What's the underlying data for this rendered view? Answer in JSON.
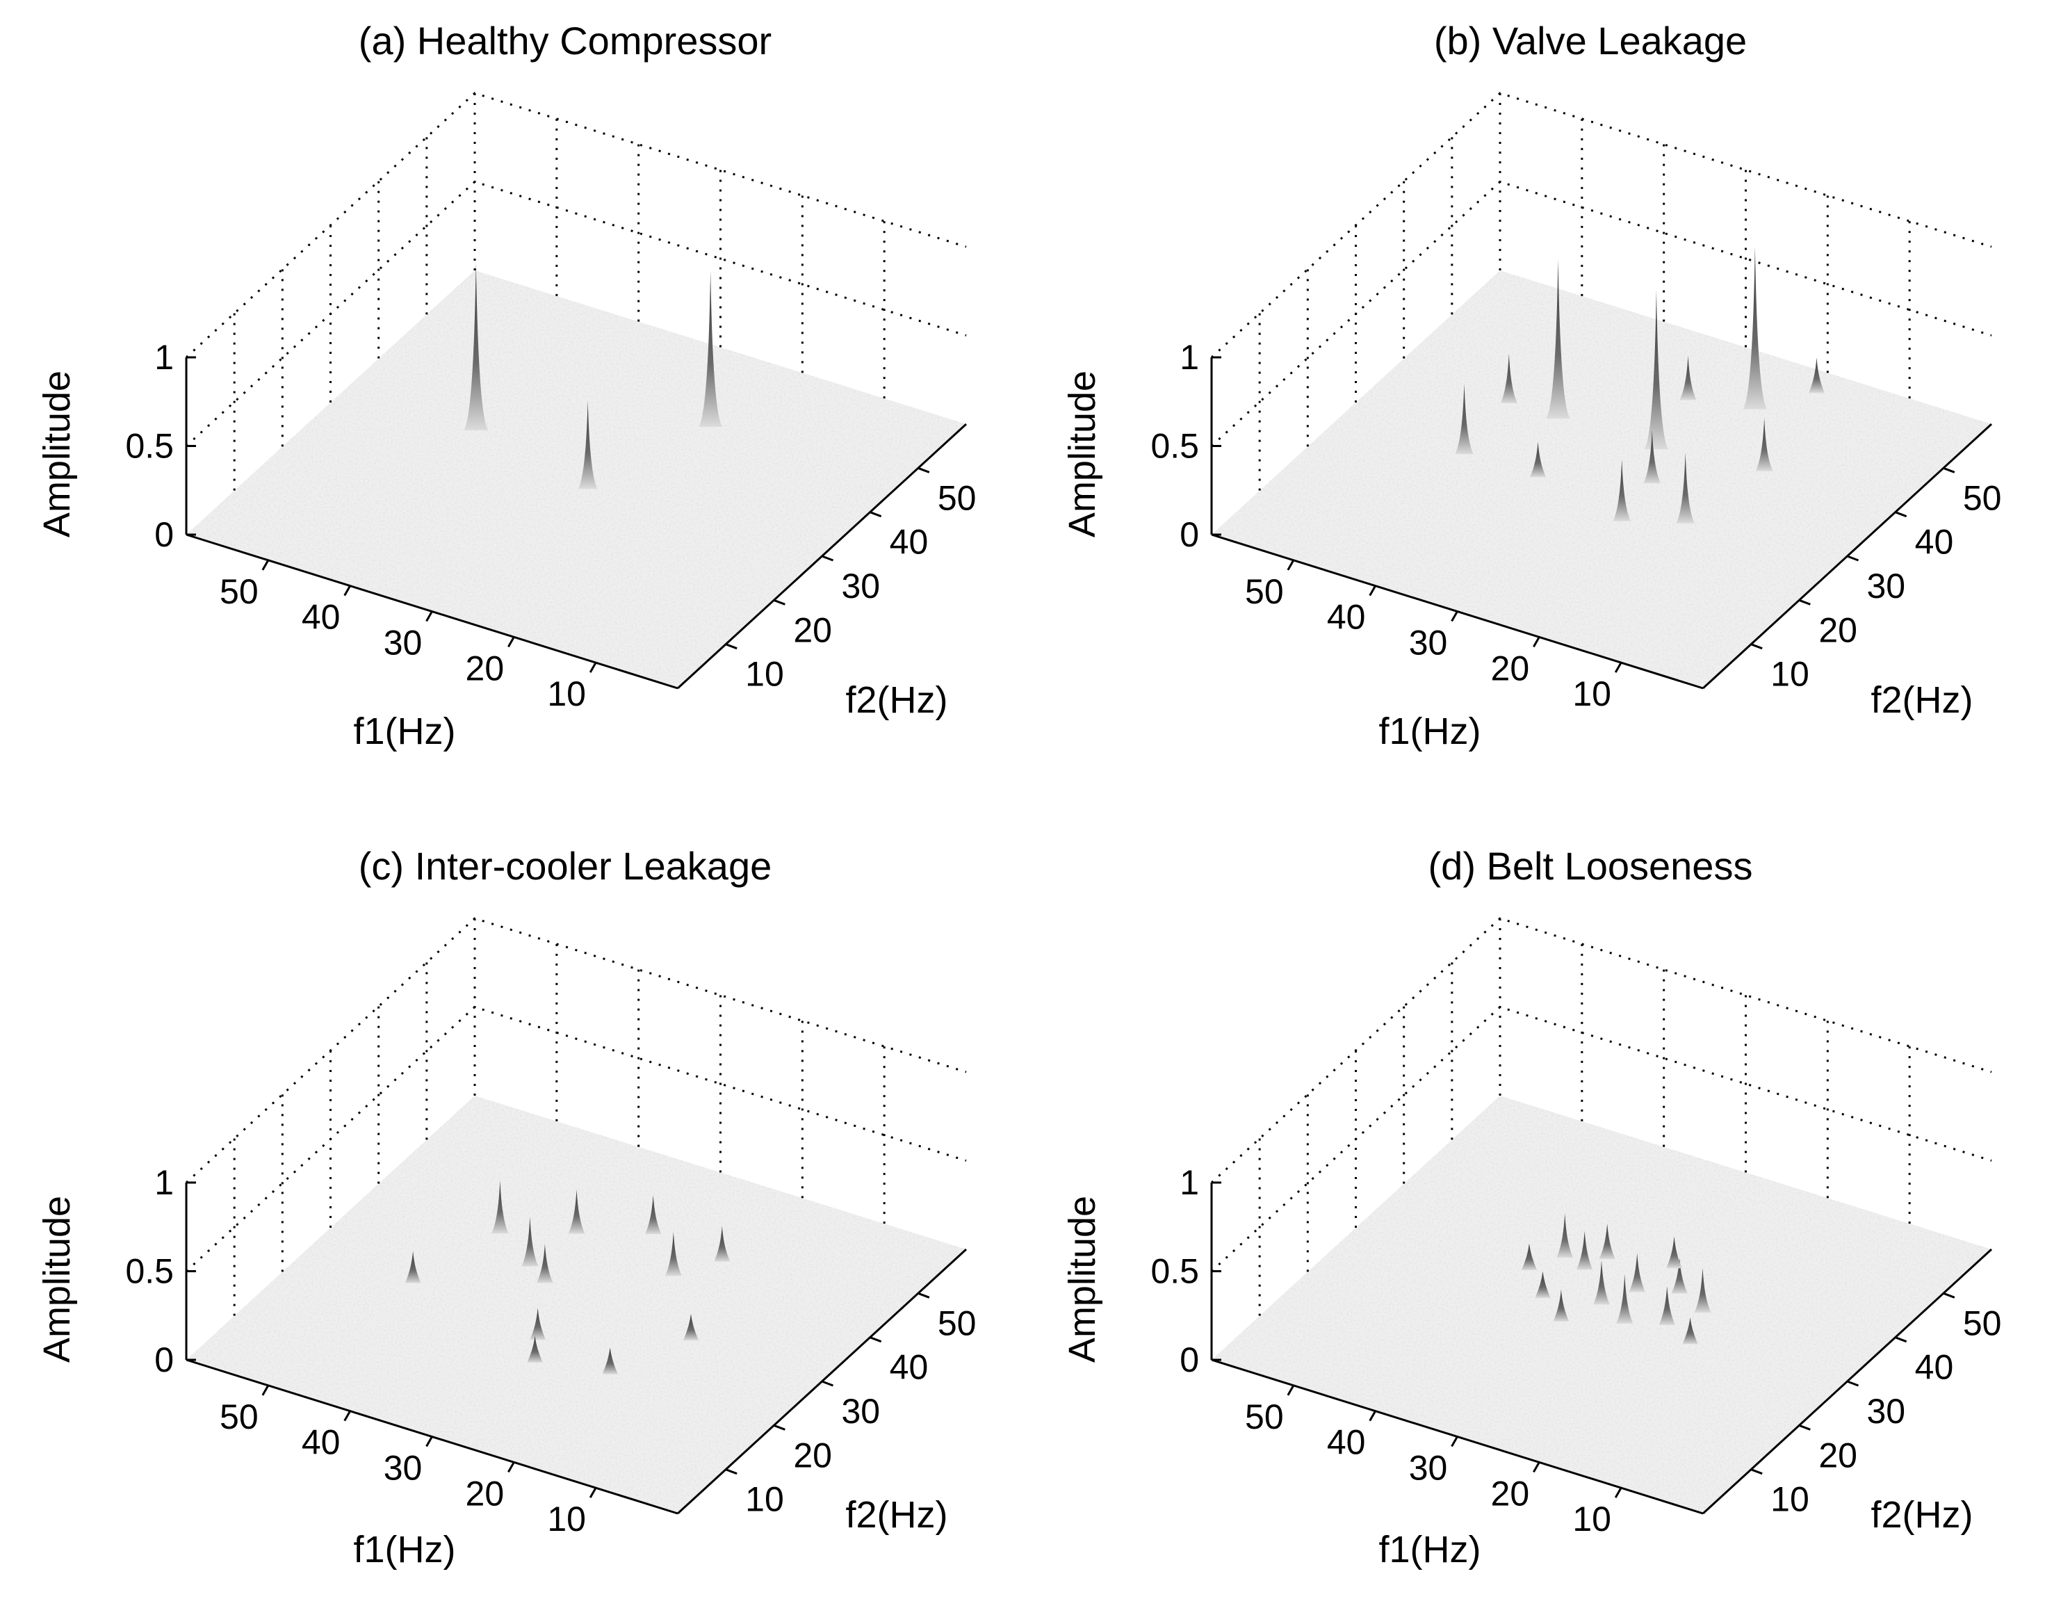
{
  "chart_data": [
    {
      "panel": "a",
      "type": "surface3d",
      "title": "(a) Healthy Compressor",
      "xlabel": "f1(Hz)",
      "ylabel": "f2(Hz)",
      "zlabel": "Amplitude",
      "xlim": [
        0,
        60
      ],
      "ylim": [
        0,
        60
      ],
      "zlim": [
        0,
        1
      ],
      "x_ticks": [
        50,
        40,
        30,
        20,
        10
      ],
      "y_ticks": [
        10,
        20,
        30,
        40,
        50
      ],
      "z_ticks": [
        "0",
        "0.5",
        "1"
      ],
      "peaks": [
        {
          "f1": 44,
          "f2": 33,
          "amplitude": 0.95
        },
        {
          "f1": 23,
          "f2": 46,
          "amplitude": 0.88
        },
        {
          "f1": 28,
          "f2": 29,
          "amplitude": 0.5
        }
      ]
    },
    {
      "panel": "b",
      "type": "surface3d",
      "title": "(b) Valve Leakage",
      "xlabel": "f1(Hz)",
      "ylabel": "f2(Hz)",
      "zlabel": "Amplitude",
      "xlim": [
        0,
        60
      ],
      "ylim": [
        0,
        60
      ],
      "zlim": [
        0,
        1
      ],
      "x_ticks": [
        50,
        40,
        30,
        20,
        10
      ],
      "y_ticks": [
        10,
        20,
        30,
        40,
        50
      ],
      "z_ticks": [
        "0",
        "0.5",
        "1"
      ],
      "peaks": [
        {
          "f1": 40,
          "f2": 38,
          "amplitude": 0.9
        },
        {
          "f1": 28,
          "f2": 38,
          "amplitude": 0.9
        },
        {
          "f1": 23,
          "f2": 50,
          "amplitude": 0.92
        },
        {
          "f1": 45,
          "f2": 27,
          "amplitude": 0.4
        },
        {
          "f1": 46,
          "f2": 38,
          "amplitude": 0.28
        },
        {
          "f1": 25,
          "f2": 32,
          "amplitude": 0.3
        },
        {
          "f1": 24,
          "f2": 24,
          "amplitude": 0.35
        },
        {
          "f1": 18,
          "f2": 27,
          "amplitude": 0.4
        },
        {
          "f1": 36,
          "f2": 27,
          "amplitude": 0.2
        },
        {
          "f1": 16,
          "f2": 40,
          "amplitude": 0.3
        },
        {
          "f1": 30,
          "f2": 48,
          "amplitude": 0.25
        },
        {
          "f1": 19,
          "f2": 56,
          "amplitude": 0.2
        }
      ]
    },
    {
      "panel": "c",
      "type": "surface3d",
      "title": "(c) Inter-cooler Leakage",
      "xlabel": "f1(Hz)",
      "ylabel": "f2(Hz)",
      "zlabel": "Amplitude",
      "xlim": [
        0,
        60
      ],
      "ylim": [
        0,
        60
      ],
      "zlim": [
        0,
        1
      ],
      "x_ticks": [
        50,
        40,
        30,
        20,
        10
      ],
      "y_ticks": [
        10,
        20,
        30,
        40,
        50
      ],
      "z_ticks": [
        "0",
        "0.5",
        "1"
      ],
      "peaks": [
        {
          "f1": 44,
          "f2": 38,
          "amplitude": 0.3
        },
        {
          "f1": 38,
          "f2": 34,
          "amplitude": 0.28
        },
        {
          "f1": 35,
          "f2": 32,
          "amplitude": 0.22
        },
        {
          "f1": 37,
          "f2": 42,
          "amplitude": 0.25
        },
        {
          "f1": 30,
          "f2": 46,
          "amplitude": 0.22
        },
        {
          "f1": 24,
          "f2": 40,
          "amplitude": 0.25
        },
        {
          "f1": 21,
          "f2": 45,
          "amplitude": 0.2
        },
        {
          "f1": 47,
          "f2": 25,
          "amplitude": 0.18
        },
        {
          "f1": 30,
          "f2": 22,
          "amplitude": 0.18
        },
        {
          "f1": 28,
          "f2": 18,
          "amplitude": 0.15
        },
        {
          "f1": 16,
          "f2": 30,
          "amplitude": 0.15
        },
        {
          "f1": 20,
          "f2": 20,
          "amplitude": 0.15
        }
      ]
    },
    {
      "panel": "d",
      "type": "surface3d",
      "title": "(d) Belt Looseness",
      "xlabel": "f1(Hz)",
      "ylabel": "f2(Hz)",
      "zlabel": "Amplitude",
      "xlim": [
        0,
        60
      ],
      "ylim": [
        0,
        60
      ],
      "zlim": [
        0,
        1
      ],
      "x_ticks": [
        50,
        40,
        30,
        20,
        10
      ],
      "y_ticks": [
        10,
        20,
        30,
        40,
        50
      ],
      "z_ticks": [
        "0",
        "0.5",
        "1"
      ],
      "peaks": [
        {
          "f1": 38,
          "f2": 36,
          "amplitude": 0.25
        },
        {
          "f1": 35,
          "f2": 35,
          "amplitude": 0.22
        },
        {
          "f1": 34,
          "f2": 38,
          "amplitude": 0.2
        },
        {
          "f1": 30,
          "f2": 30,
          "amplitude": 0.25
        },
        {
          "f1": 28,
          "f2": 34,
          "amplitude": 0.22
        },
        {
          "f1": 26,
          "f2": 28,
          "amplitude": 0.28
        },
        {
          "f1": 24,
          "f2": 36,
          "amplitude": 0.2
        },
        {
          "f1": 22,
          "f2": 30,
          "amplitude": 0.22
        },
        {
          "f1": 20,
          "f2": 34,
          "amplitude": 0.25
        },
        {
          "f1": 32,
          "f2": 25,
          "amplitude": 0.18
        },
        {
          "f1": 36,
          "f2": 28,
          "amplitude": 0.15
        },
        {
          "f1": 27,
          "f2": 40,
          "amplitude": 0.18
        },
        {
          "f1": 18,
          "f2": 28,
          "amplitude": 0.15
        },
        {
          "f1": 40,
          "f2": 32,
          "amplitude": 0.15
        }
      ]
    }
  ]
}
